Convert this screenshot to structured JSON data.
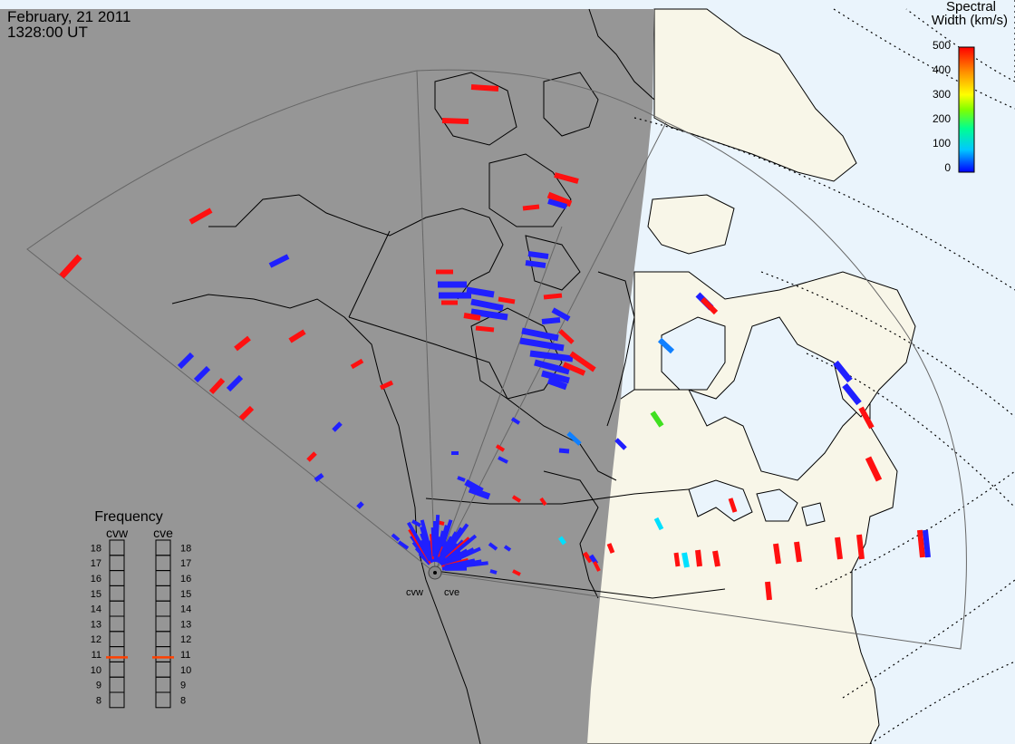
{
  "header": {
    "date": "February, 21 2011",
    "time": "1328:00 UT"
  },
  "colorbar": {
    "title_line1": "Spectral",
    "title_line2": "Width (km/s)",
    "ticks": [
      "500",
      "400",
      "300",
      "200",
      "100",
      "0"
    ],
    "colors": [
      "#0000ff",
      "#00c8ff",
      "#00ff90",
      "#80ff00",
      "#ffff00",
      "#ff9000",
      "#ff0000"
    ]
  },
  "radars": {
    "west_label": "cvw",
    "east_label": "cve"
  },
  "frequency_panel": {
    "title": "Frequency",
    "left_label": "cvw",
    "right_label": "cve",
    "ticks": [
      "18",
      "17",
      "16",
      "15",
      "14",
      "13",
      "12",
      "11",
      "10",
      "9",
      "8"
    ],
    "cvw_value_mhz": 10.8,
    "cve_value_mhz": 10.8,
    "marker_color": "#ff4000"
  },
  "colors": {
    "night": "#969696",
    "land_day": "#f8f6e8",
    "ocean_day": "#eaf4fc",
    "fov_line": "#666666",
    "coast_line": "#000000",
    "low_width": "#2020ff",
    "high_width": "#ff1010"
  }
}
